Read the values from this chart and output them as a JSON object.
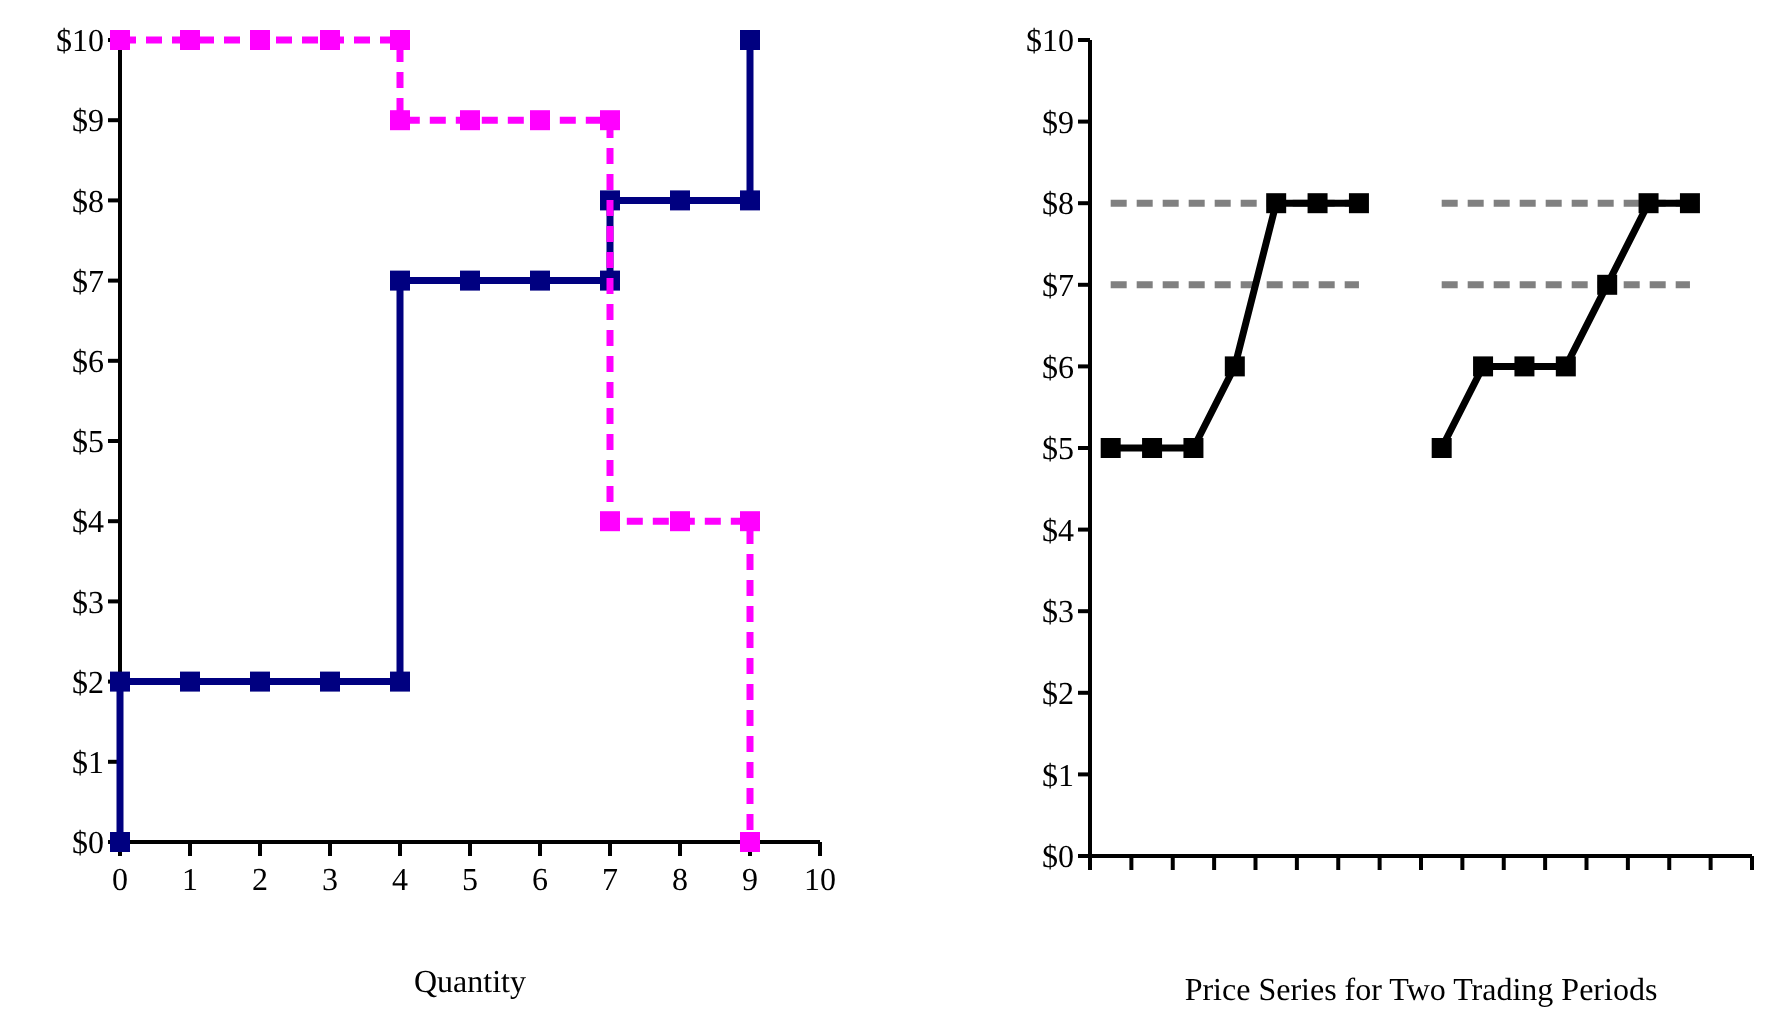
{
  "chart_data": [
    {
      "type": "line",
      "xlabel": "Quantity",
      "xlim": [
        0,
        10
      ],
      "xticks": [
        0,
        1,
        2,
        3,
        4,
        5,
        6,
        7,
        8,
        9,
        10
      ],
      "ylim": [
        0,
        10
      ],
      "yticks": [
        {
          "value": 0,
          "label": "$0"
        },
        {
          "value": 1,
          "label": "$1"
        },
        {
          "value": 2,
          "label": "$2"
        },
        {
          "value": 3,
          "label": "$3"
        },
        {
          "value": 4,
          "label": "$4"
        },
        {
          "value": 5,
          "label": "$5"
        },
        {
          "value": 6,
          "label": "$6"
        },
        {
          "value": 7,
          "label": "$7"
        },
        {
          "value": 8,
          "label": "$8"
        },
        {
          "value": 9,
          "label": "$9"
        },
        {
          "value": 10,
          "label": "$10"
        }
      ],
      "grid": false,
      "marker": "square",
      "series": [
        {
          "color": "#000080",
          "line_style": "solid",
          "x": [
            0,
            0,
            1,
            2,
            3,
            4,
            4,
            5,
            6,
            7,
            7,
            8,
            9,
            9
          ],
          "values": [
            0,
            2,
            2,
            2,
            2,
            2,
            7,
            7,
            7,
            7,
            8,
            8,
            8,
            10
          ]
        },
        {
          "color": "#ff00ff",
          "line_style": "dashed",
          "x": [
            0,
            1,
            2,
            3,
            4,
            4,
            5,
            6,
            7,
            7,
            8,
            9,
            9
          ],
          "values": [
            10,
            10,
            10,
            10,
            10,
            9,
            9,
            9,
            9,
            4,
            4,
            4,
            0
          ]
        }
      ]
    },
    {
      "type": "line",
      "xlabel": "Price Series for Two Trading Periods",
      "categories": [
        null,
        null,
        null,
        null,
        null,
        null,
        null,
        null,
        null,
        null,
        null,
        null,
        null,
        null,
        null,
        null
      ],
      "ylim": [
        0,
        10
      ],
      "yticks": [
        {
          "value": 0,
          "label": "$0"
        },
        {
          "value": 1,
          "label": "$1"
        },
        {
          "value": 2,
          "label": "$2"
        },
        {
          "value": 3,
          "label": "$3"
        },
        {
          "value": 4,
          "label": "$4"
        },
        {
          "value": 5,
          "label": "$5"
        },
        {
          "value": 6,
          "label": "$6"
        },
        {
          "value": 7,
          "label": "$7"
        },
        {
          "value": 8,
          "label": "$8"
        },
        {
          "value": 9,
          "label": "$9"
        },
        {
          "value": 10,
          "label": "$10"
        }
      ],
      "grid": false,
      "series": [
        {
          "color": "#808080",
          "line_style": "dashed",
          "marker": "none",
          "values": [
            8,
            8,
            8,
            8,
            8,
            8,
            8,
            null,
            8,
            8,
            8,
            8,
            8,
            8,
            8,
            null
          ]
        },
        {
          "color": "#808080",
          "line_style": "dashed",
          "marker": "none",
          "values": [
            7,
            7,
            7,
            7,
            7,
            7,
            7,
            null,
            7,
            7,
            7,
            7,
            7,
            7,
            7,
            null
          ]
        },
        {
          "color": "#000000",
          "line_style": "solid",
          "marker": "square",
          "values": [
            5,
            5,
            5,
            6,
            8,
            8,
            8,
            null,
            5,
            6,
            6,
            6,
            7,
            8,
            8,
            null
          ]
        }
      ]
    }
  ]
}
